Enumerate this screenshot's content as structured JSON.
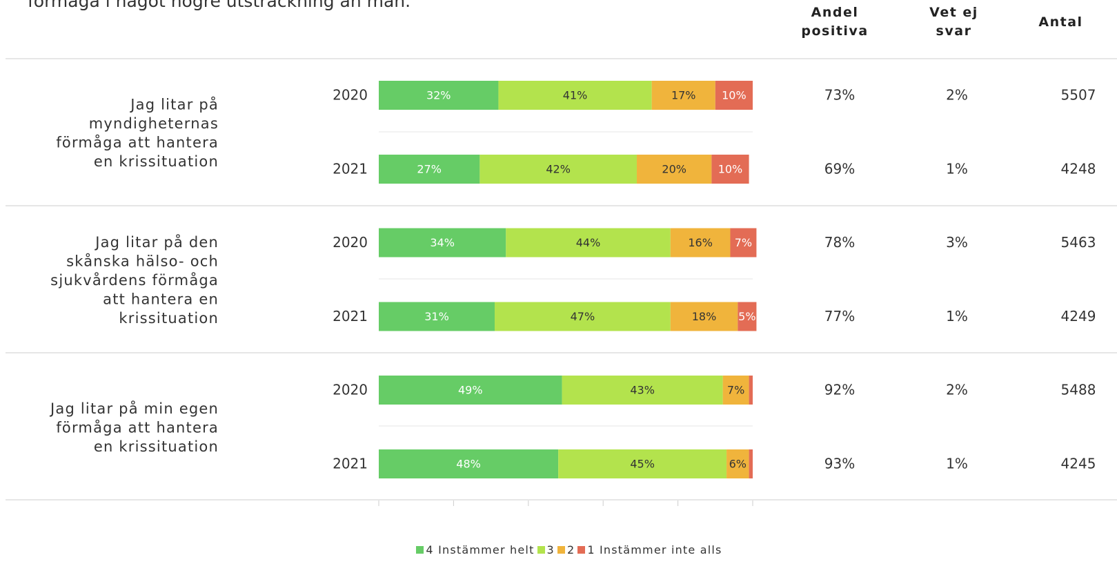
{
  "intro": "förmåga i något högre utsträckning än män.",
  "chart_data": {
    "type": "stacked-bar",
    "columns": [
      "Andel positiva",
      "Vet ej svar",
      "Antal"
    ],
    "groups": [
      {
        "label_lines": [
          "Jag litar på",
          "myndigheternas",
          "förmåga att hantera",
          "en krissituation"
        ]
      },
      {
        "label_lines": [
          "Jag litar på den",
          "skånska hälso- och",
          "sjukvårdens förmåga",
          "att hantera en",
          "krissituation"
        ]
      },
      {
        "label_lines": [
          "Jag litar på min egen",
          "förmåga att hantera",
          "en krissituation"
        ]
      }
    ],
    "categories": [
      "2020",
      "2021",
      "2020",
      "2021",
      "2020",
      "2021"
    ],
    "series": [
      {
        "name": "4 Instämmer helt",
        "color": "#66cc66",
        "label_color": "#ffffff",
        "values": [
          32,
          27,
          34,
          31,
          49,
          48
        ],
        "value_labels": [
          "32%",
          "27%",
          "34%",
          "31%",
          "49%",
          "48%"
        ]
      },
      {
        "name": "3",
        "color": "#b3e34d",
        "label_color": "#333333",
        "values": [
          41,
          42,
          44,
          47,
          43,
          45
        ],
        "value_labels": [
          "41%",
          "42%",
          "44%",
          "47%",
          "43%",
          "45%"
        ]
      },
      {
        "name": "2",
        "color": "#f0b43c",
        "label_color": "#333333",
        "values": [
          17,
          20,
          16,
          18,
          7,
          6
        ],
        "value_labels": [
          "17%",
          "20%",
          "16%",
          "18%",
          "7%",
          "6%"
        ]
      },
      {
        "name": "1 Instämmer inte alls",
        "color": "#e36c55",
        "label_color": "#ffffff",
        "values": [
          10,
          10,
          7,
          5,
          1,
          1
        ],
        "value_labels": [
          "10%",
          "10%",
          "7%",
          "5%",
          null,
          null
        ]
      }
    ],
    "xlim": [
      0,
      100
    ],
    "xticks": [
      0,
      20,
      40,
      60,
      80,
      100
    ],
    "table": {
      "positive": {
        "values": [
          73,
          69,
          78,
          77,
          92,
          93
        ],
        "value_labels": [
          "73%",
          "69%",
          "78%",
          "77%",
          "92%",
          "93%"
        ]
      },
      "dont_know": {
        "values": [
          2,
          1,
          3,
          1,
          2,
          1
        ],
        "value_labels": [
          "2%",
          "1%",
          "3%",
          "1%",
          "2%",
          "1%"
        ]
      },
      "count": {
        "values": [
          5507,
          4248,
          5463,
          4249,
          5488,
          4245
        ]
      }
    }
  }
}
